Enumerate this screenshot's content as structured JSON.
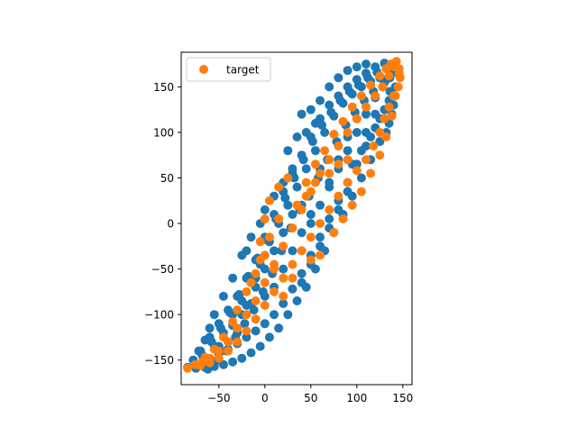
{
  "chart_data": {
    "type": "scatter",
    "title": "",
    "xlabel": "",
    "ylabel": "",
    "xlim": [
      -91,
      160
    ],
    "ylim": [
      -177,
      188
    ],
    "x_ticks": [
      -50,
      0,
      50,
      100,
      150
    ],
    "y_ticks": [
      -150,
      -100,
      -50,
      0,
      50,
      100,
      150
    ],
    "x_tick_labels": [
      "−50",
      "0",
      "50",
      "100",
      "150"
    ],
    "y_tick_labels": [
      "−150",
      "−100",
      "−50",
      "0",
      "50",
      "100",
      "150"
    ],
    "grid": false,
    "legend": {
      "position": "upper-left"
    },
    "series": [
      {
        "label": "",
        "color": "#1f77b4",
        "points": [
          [
            -84,
            -158
          ],
          [
            -78,
            -150
          ],
          [
            -70,
            -140
          ],
          [
            -60,
            -125
          ],
          [
            -50,
            -110
          ],
          [
            -40,
            -95
          ],
          [
            -30,
            -80
          ],
          [
            -20,
            -60
          ],
          [
            -10,
            -40
          ],
          [
            0,
            -15
          ],
          [
            10,
            10
          ],
          [
            20,
            35
          ],
          [
            30,
            55
          ],
          [
            40,
            75
          ],
          [
            50,
            95
          ],
          [
            60,
            115
          ],
          [
            70,
            130
          ],
          [
            80,
            140
          ],
          [
            90,
            150
          ],
          [
            100,
            158
          ],
          [
            110,
            165
          ],
          [
            120,
            172
          ],
          [
            130,
            176
          ],
          [
            138,
            170
          ],
          [
            142,
            150
          ],
          [
            140,
            130
          ],
          [
            135,
            110
          ],
          [
            125,
            90
          ],
          [
            115,
            70
          ],
          [
            105,
            50
          ],
          [
            95,
            30
          ],
          [
            85,
            10
          ],
          [
            75,
            -10
          ],
          [
            65,
            -30
          ],
          [
            55,
            -50
          ],
          [
            45,
            -70
          ],
          [
            35,
            -85
          ],
          [
            25,
            -100
          ],
          [
            15,
            -115
          ],
          [
            5,
            -125
          ],
          [
            -5,
            -135
          ],
          [
            -15,
            -142
          ],
          [
            -25,
            -148
          ],
          [
            -35,
            -152
          ],
          [
            -45,
            -155
          ],
          [
            -55,
            -157
          ],
          [
            -65,
            -158
          ],
          [
            -75,
            -159
          ],
          [
            -65,
            -148
          ],
          [
            -55,
            -135
          ],
          [
            -45,
            -120
          ],
          [
            -35,
            -100
          ],
          [
            -25,
            -85
          ],
          [
            -15,
            -65
          ],
          [
            -5,
            -45
          ],
          [
            5,
            -20
          ],
          [
            15,
            0
          ],
          [
            25,
            20
          ],
          [
            35,
            40
          ],
          [
            45,
            60
          ],
          [
            55,
            80
          ],
          [
            65,
            100
          ],
          [
            75,
            118
          ],
          [
            85,
            132
          ],
          [
            95,
            142
          ],
          [
            105,
            150
          ],
          [
            115,
            156
          ],
          [
            125,
            160
          ],
          [
            132,
            158
          ],
          [
            136,
            145
          ],
          [
            130,
            125
          ],
          [
            120,
            105
          ],
          [
            110,
            85
          ],
          [
            100,
            65
          ],
          [
            90,
            45
          ],
          [
            80,
            25
          ],
          [
            70,
            5
          ],
          [
            60,
            -15
          ],
          [
            50,
            -35
          ],
          [
            40,
            -55
          ],
          [
            30,
            -72
          ],
          [
            20,
            -88
          ],
          [
            10,
            -100
          ],
          [
            0,
            -110
          ],
          [
            -10,
            -118
          ],
          [
            -20,
            -125
          ],
          [
            -30,
            -132
          ],
          [
            -40,
            -138
          ],
          [
            -50,
            -143
          ],
          [
            -60,
            -150
          ],
          [
            -70,
            -155
          ],
          [
            -62,
            -160
          ],
          [
            -52,
            -150
          ],
          [
            -42,
            -140
          ],
          [
            -32,
            -125
          ],
          [
            -22,
            -110
          ],
          [
            -12,
            -95
          ],
          [
            -2,
            -75
          ],
          [
            8,
            -55
          ],
          [
            18,
            -30
          ],
          [
            28,
            -5
          ],
          [
            38,
            15
          ],
          [
            48,
            30
          ],
          [
            58,
            50
          ],
          [
            68,
            70
          ],
          [
            78,
            90
          ],
          [
            88,
            108
          ],
          [
            98,
            122
          ],
          [
            108,
            135
          ],
          [
            118,
            145
          ],
          [
            128,
            150
          ],
          [
            136,
            160
          ],
          [
            140,
            166
          ],
          [
            132,
            170
          ],
          [
            122,
            166
          ],
          [
            112,
            160
          ],
          [
            102,
            152
          ],
          [
            92,
            145
          ],
          [
            82,
            135
          ],
          [
            72,
            122
          ],
          [
            62,
            108
          ],
          [
            52,
            90
          ],
          [
            42,
            70
          ],
          [
            32,
            50
          ],
          [
            22,
            28
          ],
          [
            12,
            5
          ],
          [
            2,
            -18
          ],
          [
            -8,
            -38
          ],
          [
            -18,
            -58
          ],
          [
            -28,
            -78
          ],
          [
            -38,
            -98
          ],
          [
            -48,
            -115
          ],
          [
            -58,
            -130
          ],
          [
            -68,
            -145
          ],
          [
            60,
            60
          ],
          [
            70,
            40
          ],
          [
            80,
            60
          ],
          [
            90,
            80
          ],
          [
            100,
            100
          ],
          [
            110,
            120
          ],
          [
            120,
            138
          ],
          [
            130,
            155
          ],
          [
            40,
            20
          ],
          [
            50,
            0
          ],
          [
            60,
            20
          ],
          [
            70,
            45
          ],
          [
            80,
            70
          ],
          [
            90,
            95
          ],
          [
            100,
            115
          ],
          [
            110,
            100
          ],
          [
            120,
            120
          ],
          [
            30,
            10
          ],
          [
            20,
            -10
          ],
          [
            10,
            -30
          ],
          [
            0,
            -50
          ],
          [
            -10,
            -70
          ],
          [
            -20,
            -90
          ],
          [
            -20,
            -30
          ],
          [
            -10,
            -60
          ],
          [
            0,
            -80
          ],
          [
            10,
            -70
          ],
          [
            20,
            -50
          ],
          [
            30,
            -30
          ],
          [
            40,
            -10
          ],
          [
            50,
            10
          ],
          [
            95,
            65
          ],
          [
            105,
            80
          ],
          [
            115,
            95
          ],
          [
            125,
            115
          ],
          [
            135,
            135
          ],
          [
            140,
            140
          ],
          [
            138,
            120
          ],
          [
            132,
            100
          ],
          [
            90,
            35
          ],
          [
            80,
            15
          ],
          [
            70,
            -5
          ],
          [
            60,
            -25
          ],
          [
            50,
            -45
          ],
          [
            40,
            -65
          ],
          [
            -30,
            -120
          ],
          [
            -40,
            -130
          ],
          [
            -50,
            -135
          ],
          [
            -35,
            -112
          ],
          [
            -25,
            -100
          ],
          [
            -15,
            -88
          ],
          [
            55,
            110
          ],
          [
            45,
            100
          ],
          [
            50,
            125
          ],
          [
            60,
            135
          ],
          [
            70,
            150
          ],
          [
            80,
            160
          ],
          [
            90,
            168
          ],
          [
            100,
            172
          ],
          [
            110,
            175
          ],
          [
            35,
            95
          ],
          [
            25,
            80
          ],
          [
            40,
            120
          ],
          [
            30,
            60
          ],
          [
            20,
            45
          ],
          [
            10,
            30
          ],
          [
            0,
            15
          ],
          [
            -5,
            0
          ],
          [
            -15,
            -15
          ],
          [
            -25,
            -35
          ],
          [
            -35,
            -60
          ],
          [
            -45,
            -80
          ],
          [
            -55,
            -100
          ],
          [
            -60,
            -115
          ],
          [
            -65,
            -128
          ],
          [
            -72,
            -140
          ]
        ]
      },
      {
        "label": "target",
        "color": "#ff7f0e",
        "points": [
          [
            -84,
            -159
          ],
          [
            -76,
            -155
          ],
          [
            -68,
            -152
          ],
          [
            -60,
            -148
          ],
          [
            -50,
            -140
          ],
          [
            -40,
            -130
          ],
          [
            -30,
            -115
          ],
          [
            -20,
            -100
          ],
          [
            -10,
            -85
          ],
          [
            0,
            -65
          ],
          [
            10,
            -45
          ],
          [
            20,
            -25
          ],
          [
            30,
            -5
          ],
          [
            40,
            15
          ],
          [
            50,
            35
          ],
          [
            60,
            55
          ],
          [
            70,
            70
          ],
          [
            80,
            85
          ],
          [
            90,
            100
          ],
          [
            100,
            115
          ],
          [
            110,
            128
          ],
          [
            120,
            140
          ],
          [
            128,
            150
          ],
          [
            135,
            162
          ],
          [
            140,
            172
          ],
          [
            143,
            178
          ],
          [
            146,
            170
          ],
          [
            147,
            160
          ],
          [
            145,
            150
          ],
          [
            140,
            140
          ],
          [
            135,
            128
          ],
          [
            130,
            115
          ],
          [
            125,
            100
          ],
          [
            118,
            85
          ],
          [
            110,
            70
          ],
          [
            100,
            58
          ],
          [
            90,
            45
          ],
          [
            80,
            30
          ],
          [
            70,
            15
          ],
          [
            60,
            0
          ],
          [
            50,
            -15
          ],
          [
            40,
            -30
          ],
          [
            30,
            -45
          ],
          [
            20,
            -60
          ],
          [
            10,
            -75
          ],
          [
            0,
            -90
          ],
          [
            -10,
            -105
          ],
          [
            -20,
            -118
          ],
          [
            -30,
            -130
          ],
          [
            -40,
            -140
          ],
          [
            -50,
            -148
          ],
          [
            -60,
            -153
          ],
          [
            -70,
            -156
          ],
          [
            -5,
            -20
          ],
          [
            0,
            5
          ],
          [
            5,
            25
          ],
          [
            15,
            40
          ],
          [
            25,
            50
          ],
          [
            45,
            45
          ],
          [
            55,
            65
          ],
          [
            65,
            80
          ],
          [
            75,
            98
          ],
          [
            85,
            112
          ],
          [
            95,
            128
          ],
          [
            105,
            140
          ],
          [
            115,
            152
          ],
          [
            125,
            162
          ],
          [
            132,
            170
          ],
          [
            137,
            175
          ],
          [
            20,
            -80
          ],
          [
            30,
            -60
          ],
          [
            50,
            -40
          ],
          [
            60,
            -35
          ],
          [
            75,
            -10
          ],
          [
            85,
            5
          ],
          [
            95,
            20
          ],
          [
            105,
            35
          ],
          [
            115,
            55
          ],
          [
            125,
            75
          ],
          [
            132,
            95
          ],
          [
            138,
            118
          ],
          [
            142,
            140
          ],
          [
            146,
            165
          ],
          [
            -15,
            -65
          ],
          [
            -5,
            -40
          ],
          [
            5,
            -15
          ],
          [
            15,
            5
          ],
          [
            35,
            20
          ],
          [
            45,
            30
          ],
          [
            55,
            45
          ],
          [
            70,
            55
          ],
          [
            80,
            65
          ],
          [
            90,
            70
          ],
          [
            10,
            -50
          ],
          [
            0,
            -35
          ],
          [
            -10,
            -55
          ],
          [
            -20,
            -75
          ],
          [
            -30,
            -95
          ],
          [
            -35,
            -108
          ],
          [
            -45,
            -125
          ],
          [
            -55,
            -138
          ],
          [
            -65,
            -147
          ]
        ]
      }
    ]
  }
}
